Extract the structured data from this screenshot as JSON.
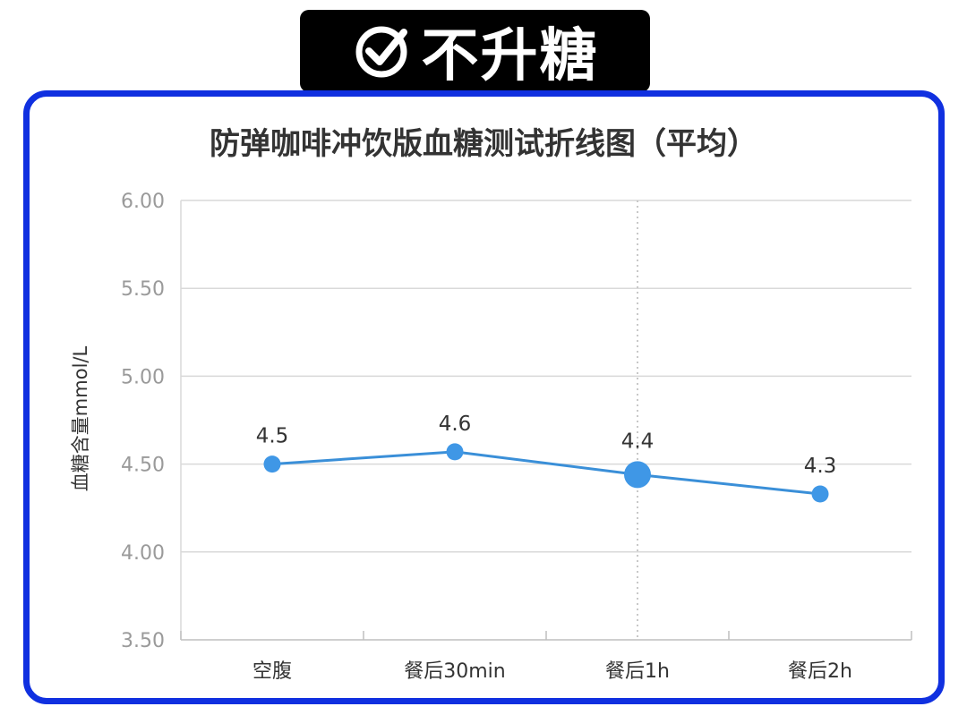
{
  "badge": {
    "text": "不升糖",
    "icon": "check-circle-icon"
  },
  "chart_data": {
    "type": "line",
    "title": "防弹咖啡冲饮版血糖测试折线图（平均）",
    "ylabel": "血糖含量mmol/L",
    "xlabel": "",
    "categories": [
      "空腹",
      "餐后30min",
      "餐后1h",
      "餐后2h"
    ],
    "values": [
      4.5,
      4.57,
      4.44,
      4.33
    ],
    "data_labels": [
      "4.5",
      "4.6",
      "4.4",
      "4.3"
    ],
    "y_ticks": [
      "6.00",
      "5.50",
      "5.00",
      "4.50",
      "4.00",
      "3.50"
    ],
    "ylim": [
      3.5,
      6.0
    ],
    "grid": true,
    "highlighted_category": "餐后1h",
    "colors": {
      "line": "#3a8fd8",
      "point": "#3f97e6",
      "grid": "#d9d9d9",
      "frame": "#1030e0"
    }
  }
}
